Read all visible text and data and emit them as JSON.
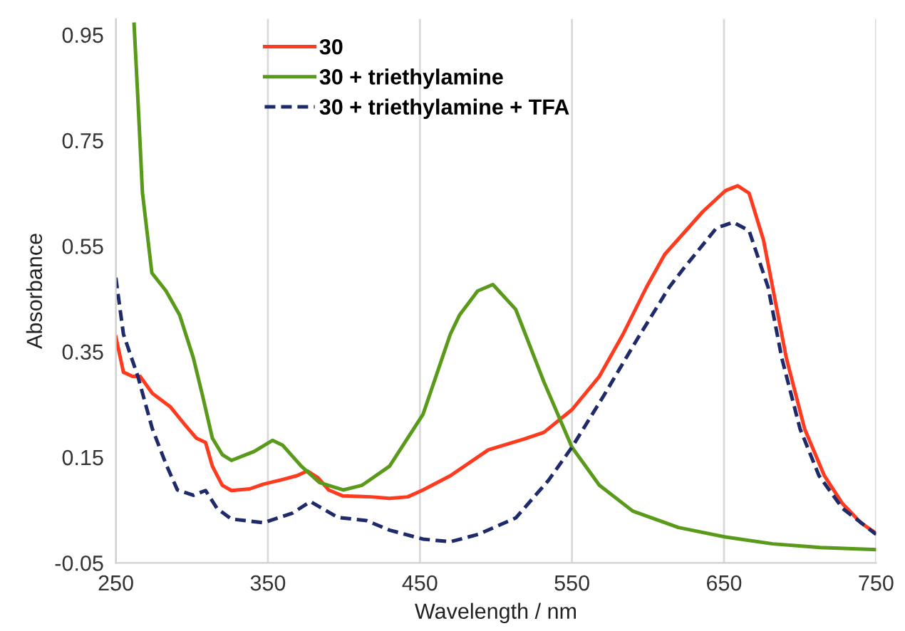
{
  "chart_data": {
    "type": "line",
    "xlabel": "Wavelength / nm",
    "ylabel": "Absorbance",
    "xlim": [
      250,
      750
    ],
    "xticks": [
      250,
      350,
      450,
      550,
      650,
      750
    ],
    "ylim": [
      -0.05,
      0.98
    ],
    "yticks": [
      -0.05,
      0.15,
      0.35,
      0.55,
      0.75,
      0.95
    ],
    "grid": "x",
    "legend": "top left",
    "line_style": "solid",
    "series": [
      {
        "name": "30",
        "color": "#ff3b1f",
        "x": [
          250,
          255,
          261,
          266,
          274,
          286,
          295,
          303,
          309,
          313.5,
          320,
          326,
          338,
          347,
          360,
          369,
          376,
          383,
          390,
          399,
          418,
          430,
          442,
          452,
          470,
          495,
          519,
          531.5,
          550,
          568,
          583.6,
          599,
          611,
          636,
          651,
          659,
          666.5,
          676,
          685,
          691,
          703,
          716,
          728,
          740,
          750
        ],
        "values": [
          0.378,
          0.311,
          0.303,
          0.303,
          0.271,
          0.245,
          0.213,
          0.186,
          0.178,
          0.133,
          0.097,
          0.087,
          0.09,
          0.099,
          0.108,
          0.115,
          0.124,
          0.111,
          0.088,
          0.077,
          0.075,
          0.072,
          0.075,
          0.088,
          0.115,
          0.164,
          0.185,
          0.197,
          0.24,
          0.303,
          0.383,
          0.472,
          0.534,
          0.615,
          0.655,
          0.664,
          0.65,
          0.561,
          0.427,
          0.338,
          0.204,
          0.115,
          0.062,
          0.026,
          0.006
        ]
      },
      {
        "name": "30 + triethylamine",
        "color": "#5a9a1a",
        "x": [
          262,
          264.5,
          267.5,
          273.7,
          283,
          292,
          301,
          307,
          313.5,
          320,
          326,
          341,
          353,
          359.6,
          372,
          384,
          399.5,
          412,
          430,
          452,
          470,
          476,
          488,
          498,
          513,
          531.5,
          550,
          568,
          590,
          620,
          651,
          682,
          713,
          750
        ],
        "values": [
          0.97,
          0.829,
          0.651,
          0.499,
          0.465,
          0.419,
          0.338,
          0.267,
          0.186,
          0.155,
          0.144,
          0.161,
          0.182,
          0.173,
          0.133,
          0.102,
          0.088,
          0.097,
          0.133,
          0.231,
          0.383,
          0.419,
          0.465,
          0.477,
          0.43,
          0.293,
          0.169,
          0.097,
          0.048,
          0.017,
          -0.001,
          -0.014,
          -0.021,
          -0.025
        ]
      },
      {
        "name": "30 + triethylamine + TFA",
        "color": "#1f2a6b",
        "line_style": "dashed",
        "x": [
          250,
          255,
          264.5,
          274,
          283,
          290.5,
          301,
          309,
          316.6,
          326,
          347,
          366,
          378,
          396,
          415,
          430,
          452,
          470,
          488.5,
          513,
          534.5,
          550,
          571,
          593,
          614,
          623.6,
          645,
          656,
          666.5,
          679,
          688,
          700,
          712.5,
          728,
          750
        ],
        "values": [
          0.49,
          0.383,
          0.303,
          0.204,
          0.137,
          0.088,
          0.078,
          0.087,
          0.053,
          0.033,
          0.026,
          0.044,
          0.066,
          0.036,
          0.03,
          0.012,
          -0.005,
          -0.01,
          0.004,
          0.035,
          0.106,
          0.169,
          0.267,
          0.374,
          0.472,
          0.508,
          0.584,
          0.595,
          0.579,
          0.472,
          0.338,
          0.204,
          0.115,
          0.053,
          0.004
        ]
      }
    ]
  }
}
